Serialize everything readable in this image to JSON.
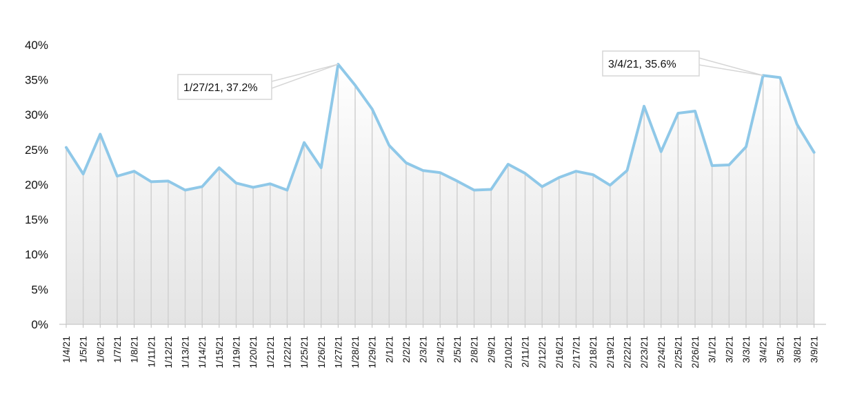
{
  "chart_data": {
    "type": "area",
    "title": "",
    "xlabel": "",
    "ylabel": "",
    "ylim": [
      0,
      40
    ],
    "yticks": [
      "0%",
      "5%",
      "10%",
      "15%",
      "20%",
      "25%",
      "30%",
      "35%",
      "40%"
    ],
    "grid": false,
    "legend": "none",
    "line_color": "#8fc8e8",
    "fill_color": "#e6e6e6",
    "drop_line_color": "#d0d0d0",
    "categories": [
      "1/4/21",
      "1/5/21",
      "1/6/21",
      "1/7/21",
      "1/8/21",
      "1/11/21",
      "1/12/21",
      "1/13/21",
      "1/14/21",
      "1/15/21",
      "1/19/21",
      "1/20/21",
      "1/21/21",
      "1/22/21",
      "1/25/21",
      "1/26/21",
      "1/27/21",
      "1/28/21",
      "1/29/21",
      "2/1/21",
      "2/2/21",
      "2/3/21",
      "2/4/21",
      "2/5/21",
      "2/8/21",
      "2/9/21",
      "2/10/21",
      "2/11/21",
      "2/12/21",
      "2/16/21",
      "2/17/21",
      "2/18/21",
      "2/19/21",
      "2/22/21",
      "2/23/21",
      "2/24/21",
      "2/25/21",
      "2/26/21",
      "3/1/21",
      "3/2/21",
      "3/3/21",
      "3/4/21",
      "3/5/21",
      "3/8/21",
      "3/9/21"
    ],
    "series": [
      {
        "values": [
          25.3,
          21.5,
          27.2,
          21.2,
          21.9,
          20.4,
          20.5,
          19.2,
          19.7,
          22.4,
          20.2,
          19.6,
          20.1,
          19.2,
          26.0,
          22.4,
          37.2,
          34.2,
          30.8,
          25.6,
          23.1,
          22.0,
          21.7,
          20.5,
          19.2,
          19.3,
          22.9,
          21.6,
          19.7,
          21.0,
          21.9,
          21.4,
          19.9,
          22.0,
          31.2,
          24.7,
          30.2,
          30.5,
          22.7,
          22.8,
          25.4,
          35.6,
          35.3,
          28.6,
          24.6
        ]
      }
    ],
    "annotations": [
      {
        "index": 16,
        "text": "1/27/21, 37.2%"
      },
      {
        "index": 41,
        "text": "3/4/21, 35.6%"
      }
    ]
  }
}
